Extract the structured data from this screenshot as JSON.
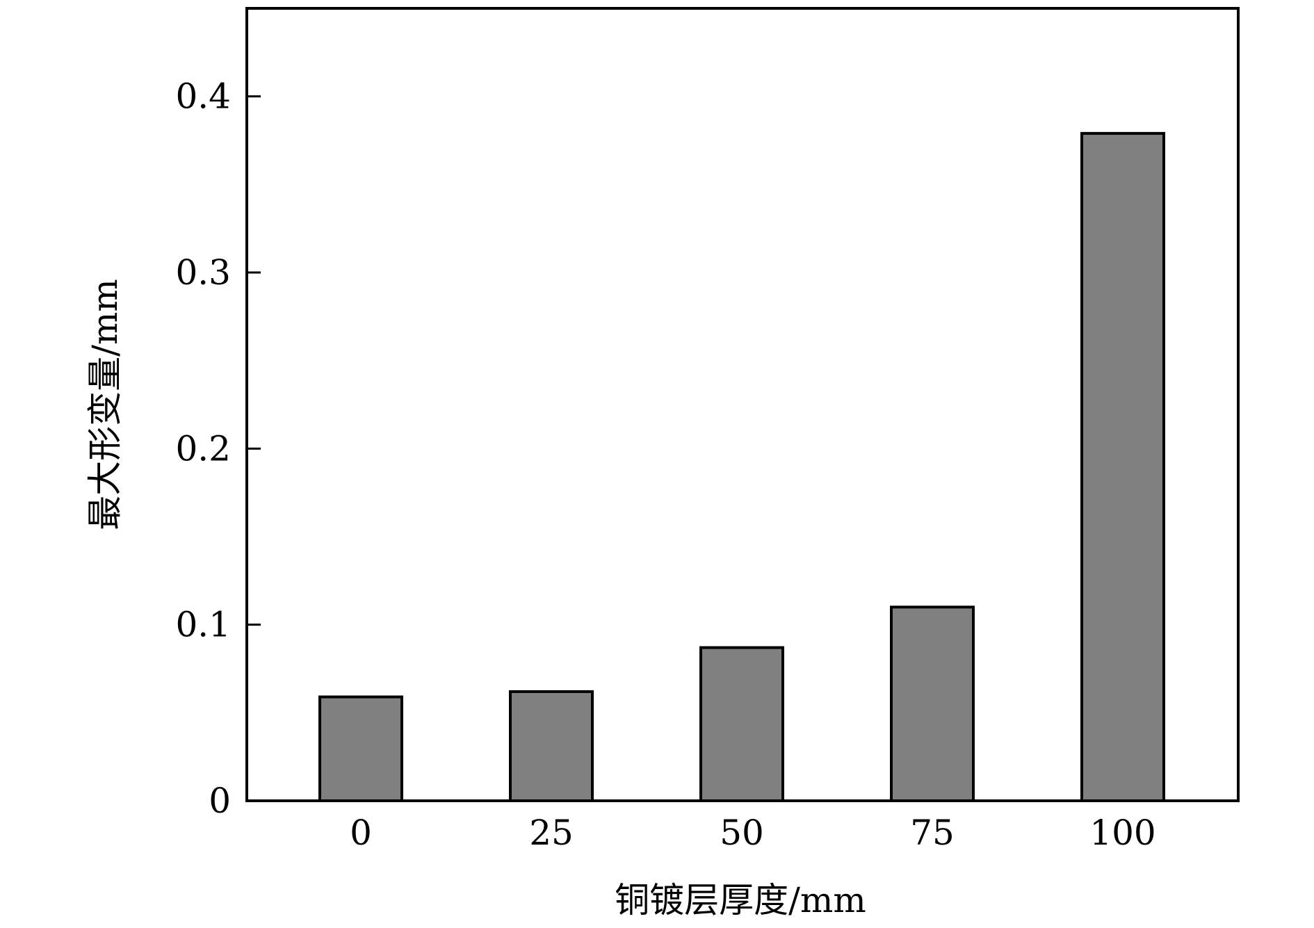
{
  "chart_data": {
    "type": "bar",
    "categories": [
      "0",
      "25",
      "50",
      "75",
      "100"
    ],
    "values": [
      0.059,
      0.062,
      0.087,
      0.11,
      0.379
    ],
    "xlabel": "铜镀层厚度/mm",
    "ylabel": "最大形变量/mm",
    "ylim": [
      0,
      0.45
    ],
    "yticks": [
      0,
      0.1,
      0.2,
      0.3,
      0.4
    ],
    "ytick_labels": [
      "0",
      "0.1",
      "0.2",
      "0.3",
      "0.4"
    ],
    "grid": false,
    "legend": "none",
    "colors": {
      "bar_fill": "#808080",
      "bar_stroke": "#000000",
      "axis": "#000000",
      "background": "#ffffff"
    }
  }
}
